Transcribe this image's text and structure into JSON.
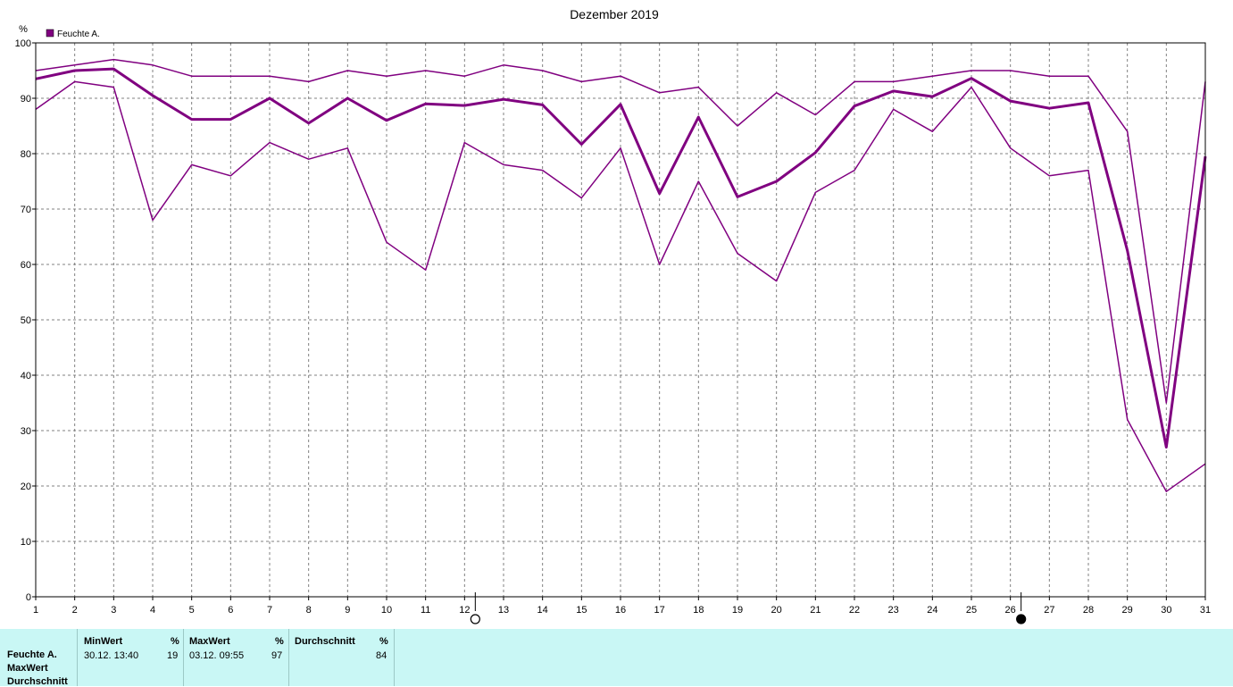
{
  "chart_data": {
    "type": "line",
    "title": "Dezember 2019",
    "ylabel": "%",
    "ylim": [
      0,
      100
    ],
    "yticks": [
      0,
      10,
      20,
      30,
      40,
      50,
      60,
      70,
      80,
      90,
      100
    ],
    "x": [
      1,
      2,
      3,
      4,
      5,
      6,
      7,
      8,
      9,
      10,
      11,
      12,
      13,
      14,
      15,
      16,
      17,
      18,
      19,
      20,
      21,
      22,
      23,
      24,
      25,
      26,
      27,
      28,
      29,
      30,
      31
    ],
    "xlim": [
      1,
      31
    ],
    "grid": true,
    "legend": {
      "position": "top-left",
      "entries": [
        "Feuchte A."
      ],
      "color": "#800080"
    },
    "series": [
      {
        "role": "max",
        "color": "#800080",
        "values": [
          95,
          96,
          97,
          96,
          94,
          94,
          94,
          93,
          95,
          94,
          95,
          94,
          96,
          95,
          93,
          94,
          91,
          92,
          85,
          91,
          87,
          93,
          93,
          94,
          95,
          95,
          94,
          94,
          84,
          35,
          93
        ]
      },
      {
        "role": "mean",
        "color": "#800080",
        "values": [
          93.5,
          95,
          95.3,
          90.5,
          86.2,
          86.2,
          90,
          85.5,
          90,
          86,
          89,
          88.7,
          89.8,
          88.8,
          81.7,
          88.9,
          72.8,
          86.6,
          72.2,
          75,
          80.2,
          88.6,
          91.3,
          90.3,
          93.6,
          89.5,
          88.2,
          89.2,
          62.5,
          27,
          79.5
        ]
      },
      {
        "role": "min",
        "color": "#800080",
        "values": [
          88,
          93,
          92,
          68,
          78,
          76,
          82,
          79,
          81,
          64,
          59,
          82,
          78,
          77,
          72,
          81,
          60,
          75,
          62,
          57,
          73,
          77,
          88,
          84,
          92,
          81,
          76,
          77,
          32,
          19,
          24
        ]
      }
    ],
    "moon_markers": [
      {
        "day": 12,
        "phase": "full"
      },
      {
        "day": 26,
        "phase": "new"
      }
    ]
  },
  "stats": {
    "row_labels": [
      "Feuchte A.",
      "MaxWert",
      "Durchschnitt"
    ],
    "min": {
      "header": "MinWert",
      "unit": "%",
      "time": "30.12.  13:40",
      "value": "19"
    },
    "max": {
      "header": "MaxWert",
      "unit": "%",
      "time": "03.12.  09:55",
      "value": "97"
    },
    "avg": {
      "header": "Durchschnitt",
      "unit": "%",
      "value": "84"
    }
  }
}
